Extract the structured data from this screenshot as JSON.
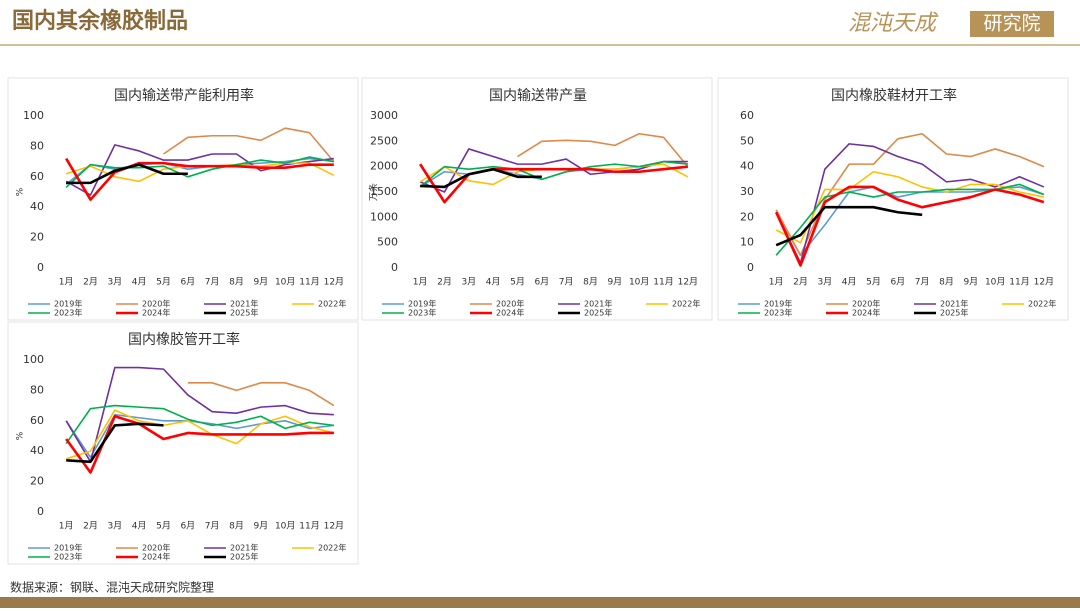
{
  "header": {
    "title": "国内其余橡胶制品",
    "logo_main": "混沌天成",
    "logo_box": "研究院"
  },
  "source": "数据来源：钢联、混沌天成研究院整理",
  "chart_data": [
    {
      "type": "line",
      "title": "国内输送带产能利用率",
      "y_label": "%",
      "categories": [
        "1月",
        "2月",
        "3月",
        "4月",
        "5月",
        "6月",
        "7月",
        "8月",
        "9月",
        "10月",
        "11月",
        "12月"
      ],
      "ylim": [
        0,
        100
      ],
      "yticks": [
        0,
        20,
        40,
        60,
        80,
        100
      ],
      "series": [
        {
          "name": "2019年",
          "color": "#5b9bd5",
          "values": [
            55,
            68,
            65,
            68,
            69,
            65,
            67,
            68,
            69,
            70,
            72,
            70
          ]
        },
        {
          "name": "2020年",
          "color": "#dd8a4a",
          "values": [
            null,
            null,
            null,
            null,
            75,
            86,
            87,
            87,
            84,
            92,
            89,
            70
          ]
        },
        {
          "name": "2021年",
          "color": "#7030a0",
          "values": [
            57,
            48,
            81,
            77,
            71,
            71,
            75,
            75,
            64,
            68,
            70,
            72
          ]
        },
        {
          "name": "2022年",
          "color": "#ffc000",
          "values": [
            62,
            67,
            60,
            57,
            65,
            67,
            67,
            68,
            67,
            69,
            69,
            61
          ]
        },
        {
          "name": "2023年",
          "color": "#00b050",
          "values": [
            53,
            68,
            66,
            66,
            67,
            60,
            65,
            68,
            71,
            69,
            73,
            70
          ]
        },
        {
          "name": "2024年",
          "color": "#ff0000",
          "values": [
            72,
            45,
            63,
            69,
            69,
            67,
            67,
            67,
            66,
            66,
            68,
            68
          ]
        },
        {
          "name": "2025年",
          "color": "#000000",
          "values": [
            56,
            56,
            64,
            68,
            62,
            62,
            null,
            null,
            null,
            null,
            null,
            null
          ]
        }
      ]
    },
    {
      "type": "line",
      "title": "国内输送带产量",
      "y_label": "万条",
      "categories": [
        "1月",
        "2月",
        "3月",
        "4月",
        "5月",
        "6月",
        "7月",
        "8月",
        "9月",
        "10月",
        "11月",
        "12月"
      ],
      "ylim": [
        0,
        3000
      ],
      "yticks": [
        0,
        500,
        1000,
        1500,
        2000,
        2500,
        3000
      ],
      "series": [
        {
          "name": "2019年",
          "color": "#5b9bd5",
          "values": [
            1600,
            1900,
            1850,
            1950,
            1850,
            1750,
            1900,
            1950,
            1950,
            2000,
            2100,
            2050
          ]
        },
        {
          "name": "2020年",
          "color": "#dd8a4a",
          "values": [
            null,
            null,
            null,
            null,
            2200,
            2500,
            2520,
            2500,
            2420,
            2650,
            2580,
            2000
          ]
        },
        {
          "name": "2021年",
          "color": "#7030a0",
          "values": [
            1700,
            1500,
            2350,
            2200,
            2050,
            2050,
            2150,
            1850,
            1900,
            1950,
            2100,
            2100
          ]
        },
        {
          "name": "2022年",
          "color": "#ffc000",
          "values": [
            1700,
            2000,
            1720,
            1650,
            1900,
            1950,
            1950,
            1950,
            1950,
            2000,
            2050,
            1800
          ]
        },
        {
          "name": "2023年",
          "color": "#00b050",
          "values": [
            1600,
            2000,
            1950,
            2000,
            1950,
            1750,
            1900,
            2000,
            2050,
            2000,
            2100,
            2050
          ]
        },
        {
          "name": "2024年",
          "color": "#ff0000",
          "values": [
            2050,
            1300,
            1850,
            1950,
            1950,
            1950,
            1950,
            1950,
            1900,
            1900,
            1950,
            2000
          ]
        },
        {
          "name": "2025年",
          "color": "#000000",
          "values": [
            1620,
            1600,
            1850,
            1950,
            1800,
            1800,
            null,
            null,
            null,
            null,
            null,
            null
          ]
        }
      ]
    },
    {
      "type": "line",
      "title": "国内橡胶鞋材开工率",
      "categories": [
        "1月",
        "2月",
        "3月",
        "4月",
        "5月",
        "6月",
        "7月",
        "8月",
        "9月",
        "10月",
        "11月",
        "12月"
      ],
      "ylim": [
        0,
        60
      ],
      "yticks": [
        0,
        10,
        20,
        30,
        40,
        50,
        60
      ],
      "series": [
        {
          "name": "2019年",
          "color": "#5b9bd5",
          "values": [
            22,
            5,
            17,
            30,
            32,
            28,
            30,
            30,
            30,
            31,
            32,
            29
          ]
        },
        {
          "name": "2020年",
          "color": "#dd8a4a",
          "values": [
            23,
            5,
            27,
            41,
            41,
            51,
            53,
            45,
            44,
            47,
            44,
            40
          ]
        },
        {
          "name": "2021年",
          "color": "#7030a0",
          "values": [
            22,
            2,
            39,
            49,
            48,
            44,
            41,
            34,
            35,
            32,
            36,
            32
          ]
        },
        {
          "name": "2022年",
          "color": "#ffc000",
          "values": [
            15,
            10,
            31,
            31,
            38,
            36,
            32,
            30,
            33,
            33,
            30,
            28
          ]
        },
        {
          "name": "2023年",
          "color": "#00b050",
          "values": [
            5,
            16,
            28,
            30,
            28,
            30,
            30,
            31,
            31,
            31,
            33,
            29
          ]
        },
        {
          "name": "2024年",
          "color": "#ff0000",
          "values": [
            22,
            1,
            26,
            32,
            32,
            27,
            24,
            26,
            28,
            31,
            29,
            26
          ]
        },
        {
          "name": "2025年",
          "color": "#000000",
          "values": [
            9,
            13,
            24,
            24,
            24,
            22,
            21,
            null,
            null,
            null,
            null,
            null
          ]
        }
      ]
    },
    {
      "type": "line",
      "title": "国内橡胶管开工率",
      "y_label": "%",
      "categories": [
        "1月",
        "2月",
        "3月",
        "4月",
        "5月",
        "6月",
        "7月",
        "8月",
        "9月",
        "10月",
        "11月",
        "12月"
      ],
      "ylim": [
        0,
        100
      ],
      "yticks": [
        0,
        20,
        40,
        60,
        80,
        100
      ],
      "series": [
        {
          "name": "2019年",
          "color": "#5b9bd5",
          "values": [
            60,
            36,
            64,
            62,
            60,
            60,
            58,
            55,
            58,
            60,
            55,
            57
          ]
        },
        {
          "name": "2020年",
          "color": "#dd8a4a",
          "values": [
            null,
            null,
            null,
            null,
            null,
            85,
            85,
            80,
            85,
            85,
            80,
            70
          ]
        },
        {
          "name": "2021年",
          "color": "#7030a0",
          "values": [
            60,
            33,
            95,
            95,
            94,
            77,
            66,
            65,
            69,
            70,
            65,
            64
          ]
        },
        {
          "name": "2022年",
          "color": "#ffc000",
          "values": [
            35,
            40,
            67,
            60,
            57,
            60,
            51,
            45,
            58,
            63,
            56,
            52
          ]
        },
        {
          "name": "2023年",
          "color": "#00b050",
          "values": [
            45,
            68,
            70,
            69,
            68,
            61,
            57,
            59,
            63,
            55,
            59,
            57
          ]
        },
        {
          "name": "2024年",
          "color": "#ff0000",
          "values": [
            48,
            26,
            63,
            58,
            48,
            52,
            51,
            51,
            51,
            51,
            52,
            52
          ]
        },
        {
          "name": "2025年",
          "color": "#000000",
          "values": [
            34,
            33,
            57,
            58,
            57,
            null,
            null,
            null,
            null,
            null,
            null,
            null
          ]
        }
      ]
    }
  ]
}
